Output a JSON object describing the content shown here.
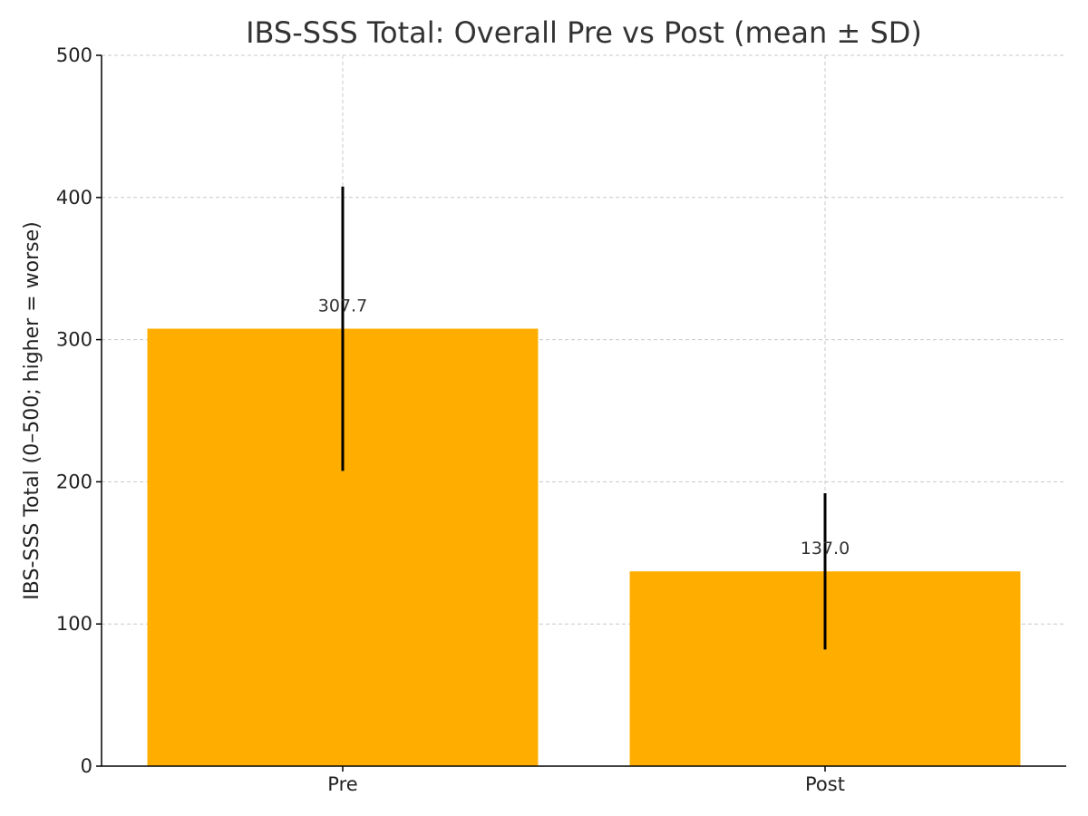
{
  "chart_data": {
    "type": "bar",
    "title": "IBS-SSS Total: Overall Pre vs Post (mean ± SD)",
    "xlabel": "",
    "ylabel": "IBS-SSS Total (0–500; higher = worse)",
    "categories": [
      "Pre",
      "Post"
    ],
    "values": [
      307.7,
      137.0
    ],
    "data_labels": [
      "307.7",
      "137.0"
    ],
    "error_sd": [
      100,
      55
    ],
    "ylim": [
      0,
      500
    ],
    "yticks": [
      0,
      100,
      200,
      300,
      400,
      500
    ],
    "ytick_labels": [
      "0",
      "100",
      "200",
      "300",
      "400",
      "500"
    ],
    "grid": true,
    "bar_color": "#FFAE00",
    "error_color": "#000000",
    "grid_color": "#C8C8C8",
    "axis_color": "#000000"
  }
}
